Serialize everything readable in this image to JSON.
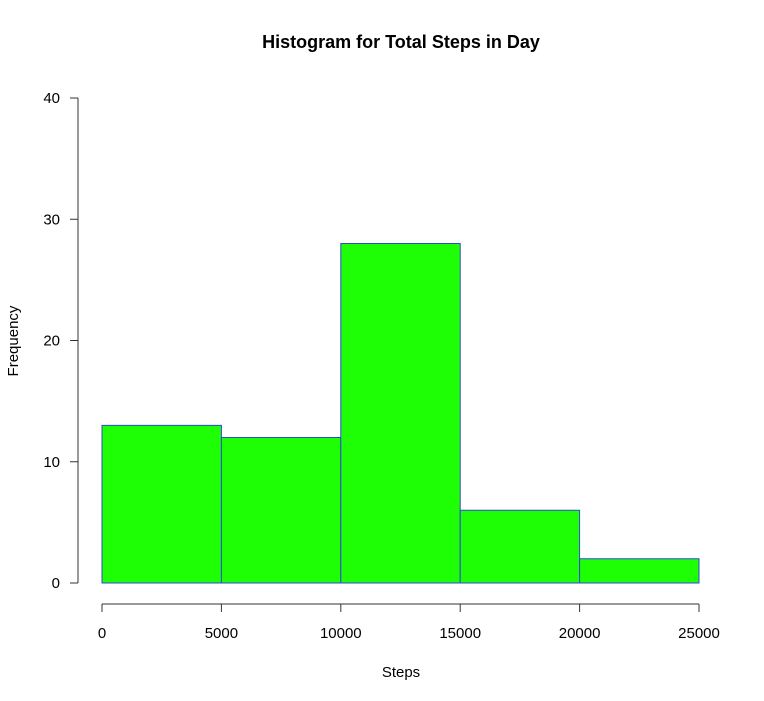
{
  "chart_data": {
    "type": "bar",
    "title": "Histogram for Total Steps in Day",
    "xlabel": "Steps",
    "ylabel": "Frequency",
    "bins": [
      {
        "start": 0,
        "end": 5000,
        "count": 13
      },
      {
        "start": 5000,
        "end": 10000,
        "count": 12
      },
      {
        "start": 10000,
        "end": 15000,
        "count": 28
      },
      {
        "start": 15000,
        "end": 20000,
        "count": 6
      },
      {
        "start": 20000,
        "end": 25000,
        "count": 2
      }
    ],
    "xlim": [
      0,
      25000
    ],
    "ylim": [
      0,
      40
    ],
    "x_ticks": [
      0,
      5000,
      10000,
      15000,
      20000,
      25000
    ],
    "y_ticks": [
      0,
      10,
      20,
      30,
      40
    ],
    "x_tick_labels": [
      "0",
      "5000",
      "10000",
      "15000",
      "20000",
      "25000"
    ],
    "y_tick_labels": [
      "0",
      "10",
      "20",
      "30",
      "40"
    ],
    "bar_fill": "#1eff06",
    "bar_border": "#2a4bd7",
    "grid": false
  }
}
